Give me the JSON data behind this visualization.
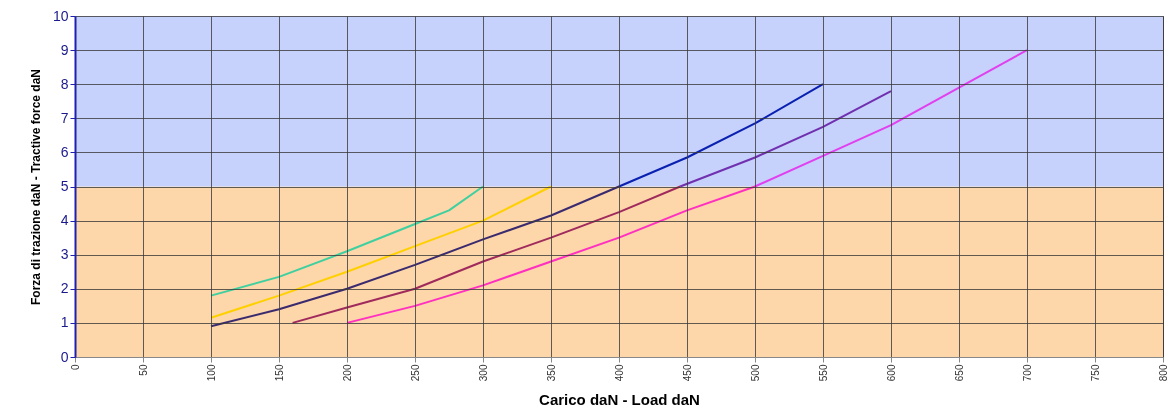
{
  "chart_data": {
    "type": "line",
    "xlabel": "Carico daN - Load daN",
    "ylabel": "Forza di trazione daN - Tractive force daN",
    "xlim": [
      0,
      800
    ],
    "xticks": [
      0,
      50,
      100,
      150,
      200,
      250,
      300,
      350,
      400,
      450,
      500,
      550,
      600,
      650,
      700,
      750,
      800
    ],
    "ylim": [
      0,
      10
    ],
    "yticks": [
      0,
      1,
      2,
      3,
      4,
      5,
      6,
      7,
      8,
      9,
      10
    ],
    "grid": true,
    "marker": "none",
    "line_style": "solid",
    "bands": [
      {
        "axis": "y",
        "from": 0,
        "to": 5,
        "color": "#fdd6aa"
      },
      {
        "axis": "y",
        "from": 5,
        "to": 10,
        "color": "#c6d1fc"
      }
    ],
    "series": [
      {
        "color": "#40d0a0",
        "x": [
          100,
          150,
          200,
          250,
          275,
          300
        ],
        "values": [
          1.8,
          2.35,
          3.1,
          3.9,
          4.3,
          5
        ]
      },
      {
        "color": "#ffd000",
        "x": [
          100,
          150,
          200,
          250,
          300,
          350
        ],
        "values": [
          1.15,
          1.8,
          2.5,
          3.25,
          4,
          5
        ]
      },
      {
        "color": "#3a2a6e",
        "x": [
          100,
          150,
          200,
          250,
          300,
          350,
          400
        ],
        "values": [
          0.9,
          1.4,
          2,
          2.7,
          3.45,
          4.15,
          5
        ]
      },
      {
        "color": "#0a20b0",
        "x": [
          400,
          450,
          500,
          550
        ],
        "values": [
          5,
          5.85,
          6.85,
          8
        ]
      },
      {
        "color": "#a02a5c",
        "x": [
          160,
          200,
          250,
          300,
          350,
          400,
          445
        ],
        "values": [
          1,
          1.45,
          2,
          2.8,
          3.5,
          4.25,
          5
        ]
      },
      {
        "color": "#7030b0",
        "x": [
          445,
          500,
          550,
          600
        ],
        "values": [
          5,
          5.85,
          6.75,
          7.8
        ]
      },
      {
        "color": "#ff30c0",
        "x": [
          200,
          250,
          300,
          350,
          400,
          450,
          500
        ],
        "values": [
          1,
          1.5,
          2.1,
          2.8,
          3.5,
          4.3,
          5
        ]
      },
      {
        "color": "#e040f0",
        "x": [
          500,
          550,
          600,
          650,
          700
        ],
        "values": [
          5,
          5.9,
          6.8,
          7.9,
          9
        ]
      }
    ]
  }
}
